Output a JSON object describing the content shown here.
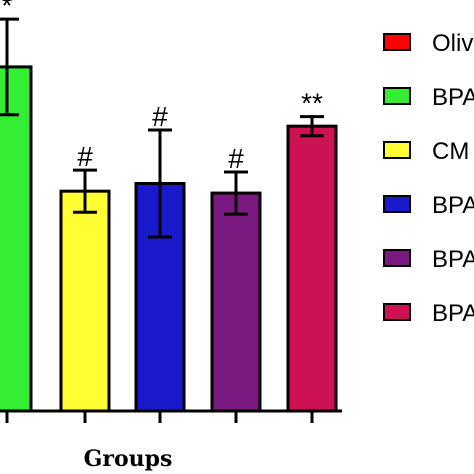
{
  "chart_data": {
    "type": "bar",
    "xlabel": "Groups",
    "ylabel": "",
    "ylim": [
      0,
      4.3
    ],
    "categories": [
      "Oliv",
      "BPA",
      "CM",
      "BPA",
      "BPA",
      "BPA"
    ],
    "values": [
      0.0,
      3.6,
      2.3,
      2.38,
      2.28,
      2.98
    ],
    "errors": [
      0.0,
      0.5,
      0.22,
      0.56,
      0.22,
      0.1
    ],
    "annotations": [
      "",
      "*",
      "#",
      "#",
      "#",
      "**"
    ],
    "colors": [
      "#ff0000",
      "#33ee33",
      "#ffff33",
      "#1a1acc",
      "#7a1a80",
      "#cc1155"
    ],
    "legend": {
      "position": "right",
      "entries": [
        "Oliv",
        "BPA",
        "CM",
        "BPA",
        "BPA",
        "BPA"
      ]
    }
  }
}
